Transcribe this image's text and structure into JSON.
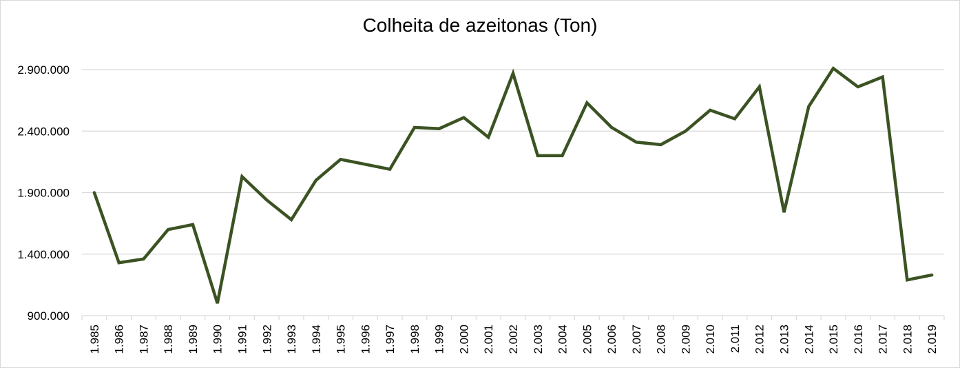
{
  "chart_data": {
    "type": "line",
    "title": "Colheita de azeitonas (Ton)",
    "xlabel": "",
    "ylabel": "",
    "ylim": [
      900000,
      2900000
    ],
    "yticks": [
      900000,
      1400000,
      1900000,
      2400000,
      2900000
    ],
    "ytick_labels": [
      "900.000",
      "1.400.000",
      "1.900.000",
      "2.400.000",
      "2.900.000"
    ],
    "categories": [
      "1.985",
      "1.986",
      "1.987",
      "1.988",
      "1.989",
      "1.990",
      "1.991",
      "1.992",
      "1.993",
      "1.994",
      "1.995",
      "1.996",
      "1.997",
      "1.998",
      "1.999",
      "2.000",
      "2.001",
      "2.002",
      "2.003",
      "2.004",
      "2.005",
      "2.006",
      "2.007",
      "2.008",
      "2.009",
      "2.010",
      "2.011",
      "2.012",
      "2.013",
      "2.014",
      "2.015",
      "2.016",
      "2.017",
      "2.018",
      "2.019"
    ],
    "series": [
      {
        "values": [
          1900000,
          1330000,
          1360000,
          1600000,
          1640000,
          1000000,
          2030000,
          1840000,
          1680000,
          2000000,
          2170000,
          2130000,
          2090000,
          2430000,
          2420000,
          2510000,
          2350000,
          2870000,
          2200000,
          2200000,
          2630000,
          2430000,
          2310000,
          2290000,
          2400000,
          2570000,
          2500000,
          2760000,
          1740000,
          2600000,
          2910000,
          2760000,
          2840000,
          1190000,
          1230000
        ],
        "color": "#3b5323"
      }
    ],
    "grid": true,
    "gridline_color": "#d9d9d9",
    "legend": "none"
  }
}
